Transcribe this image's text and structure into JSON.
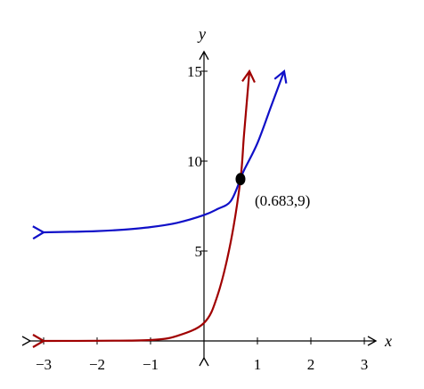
{
  "chart_data": {
    "type": "line",
    "title": "",
    "xlabel": "x",
    "ylabel": "y",
    "xlim": [
      -3,
      3
    ],
    "ylim": [
      0,
      15
    ],
    "x_ticks": [
      -3,
      -2,
      -1,
      1,
      2,
      3
    ],
    "x_tick_labels": [
      "−3",
      "−2",
      "−1",
      "1",
      "2",
      "3"
    ],
    "y_ticks": [
      5,
      10,
      15
    ],
    "y_tick_labels": [
      "5",
      "10",
      "15"
    ],
    "grid": false,
    "legend": "none",
    "series": [
      {
        "color": "#1010c8",
        "x": [
          -3,
          -2.5,
          -2,
          -1.5,
          -1,
          -0.5,
          0,
          0.25,
          0.5,
          0.683,
          0.75,
          1,
          1.25,
          1.5
        ],
        "y": [
          6.04,
          6.07,
          6.11,
          6.19,
          6.33,
          6.57,
          7.0,
          7.33,
          7.77,
          9.0,
          9.5,
          11.0,
          13.0,
          15.0
        ]
      },
      {
        "color": "#a00000",
        "x": [
          -3,
          -2,
          -1,
          -0.5,
          0,
          0.25,
          0.5,
          0.683,
          0.75,
          0.85
        ],
        "y": [
          0.0,
          0.01,
          0.05,
          0.28,
          1.0,
          2.5,
          5.5,
          9.0,
          11.5,
          15.0
        ]
      }
    ],
    "points": [
      {
        "x": 0.683,
        "y": 9,
        "label": "(0.683,9)"
      }
    ]
  }
}
